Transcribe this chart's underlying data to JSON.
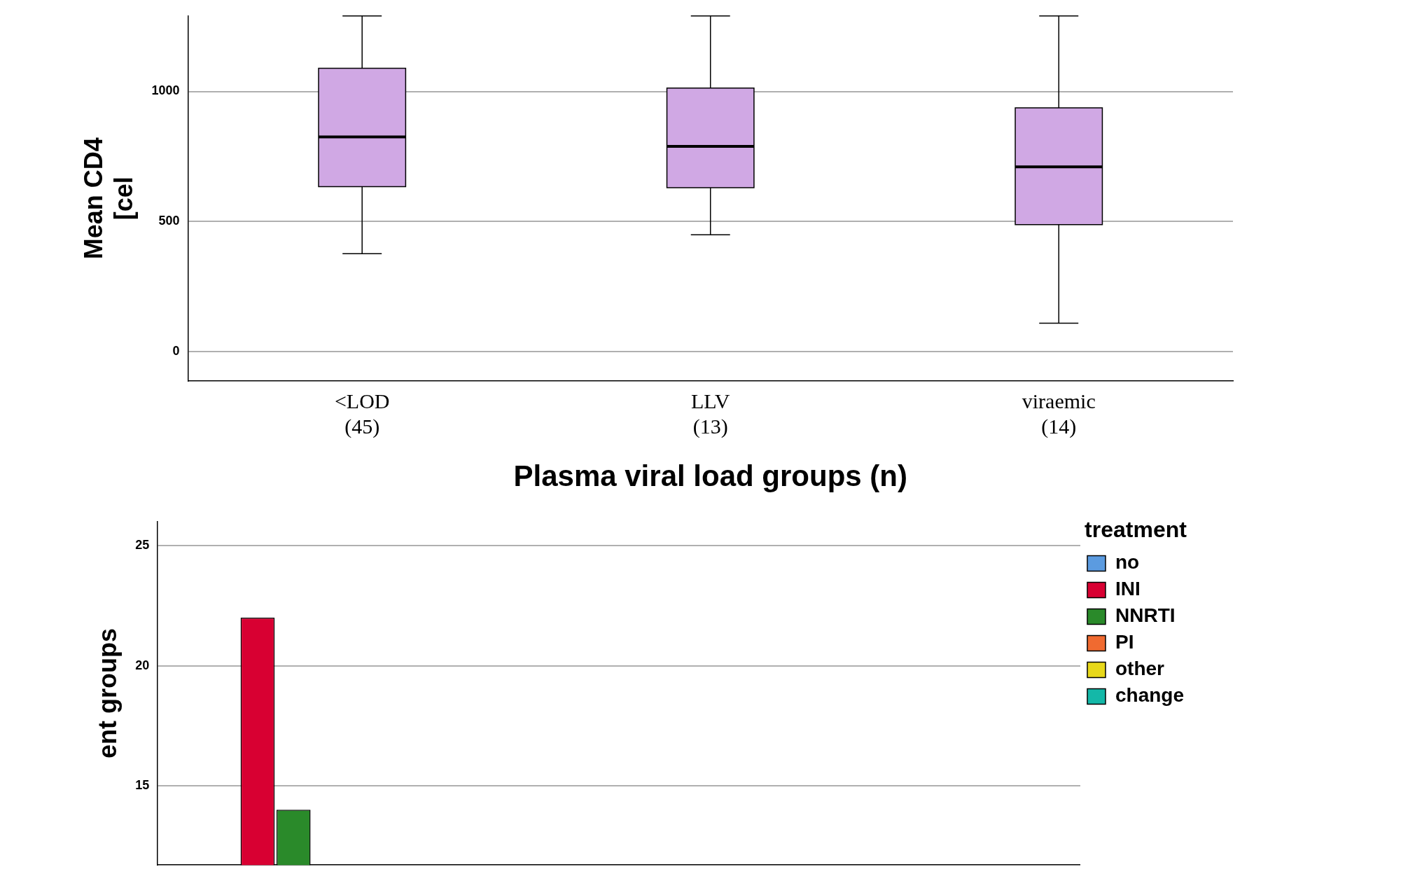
{
  "chart_data": [
    {
      "type": "box",
      "xlabel": "Plasma viral load groups (n)",
      "ylabel": "Mean CD4\n[cel",
      "categories": [
        "<LOD\n(45)",
        "LLV\n(13)",
        "viraemic\n(14)"
      ],
      "color": "#d0a8e4",
      "boxes": [
        {
          "low": 376,
          "q1": 634,
          "median": 825,
          "q3": 1089,
          "high": 1290
        },
        {
          "low": 449,
          "q1": 630,
          "median": 789,
          "q3": 1013,
          "high": 1290
        },
        {
          "low": 109,
          "q1": 488,
          "median": 710,
          "q3": 937,
          "high": 1290
        }
      ],
      "ylim": [
        -112,
        1290
      ],
      "yticks": [
        0,
        500,
        1000
      ],
      "grid": "y"
    },
    {
      "type": "bar",
      "ylabel": "ent groups",
      "legend_title": "treatment",
      "legend": "top right",
      "grid": "y",
      "categories": [
        null,
        null,
        null
      ],
      "ylim": [
        11.7,
        26
      ],
      "yticks": [
        15,
        20,
        25
      ],
      "tick_labels": "y",
      "series": [
        {
          "name": "no",
          "color": "#5b9be0",
          "values": [
            null,
            null,
            null
          ]
        },
        {
          "name": "INI",
          "color": "#d80032",
          "values": [
            22,
            null,
            null
          ]
        },
        {
          "name": "NNRTI",
          "color": "#2a8a2a",
          "values": [
            14,
            null,
            null
          ]
        },
        {
          "name": "PI",
          "color": "#f06a30",
          "values": [
            null,
            null,
            null
          ]
        },
        {
          "name": "other",
          "color": "#e8d81a",
          "values": [
            null,
            null,
            null
          ]
        },
        {
          "name": "change",
          "color": "#14b8a8",
          "values": [
            null,
            null,
            null
          ]
        }
      ]
    }
  ]
}
